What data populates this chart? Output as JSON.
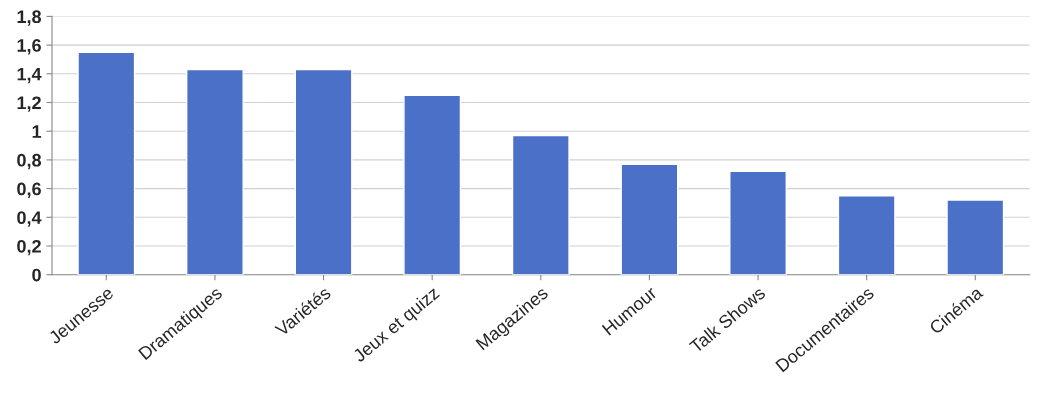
{
  "chart_data": {
    "type": "bar",
    "categories": [
      "Jeunesse",
      "Dramatiques",
      "Variétés",
      "Jeux et quizz",
      "Magazines",
      "Humour",
      "Talk Shows",
      "Documentaires",
      "Cinéma"
    ],
    "values": [
      1.55,
      1.43,
      1.43,
      1.25,
      0.97,
      0.77,
      0.72,
      0.55,
      0.52
    ],
    "color": "#4a70c8",
    "ylim": [
      0,
      1.8
    ],
    "yticks": [
      0,
      {
        "value": 0.2,
        "label": "0,2"
      },
      {
        "value": 0.4,
        "label": "0,4"
      },
      {
        "value": 0.6,
        "label": "0,6"
      },
      {
        "value": 0.8,
        "label": "0,8"
      },
      1,
      {
        "value": 1.2,
        "label": "1,2"
      },
      {
        "value": 1.4,
        "label": "1,4"
      },
      {
        "value": 1.6,
        "label": "1,6"
      },
      {
        "value": 1.8,
        "label": "1,8"
      }
    ],
    "grid": "y"
  }
}
